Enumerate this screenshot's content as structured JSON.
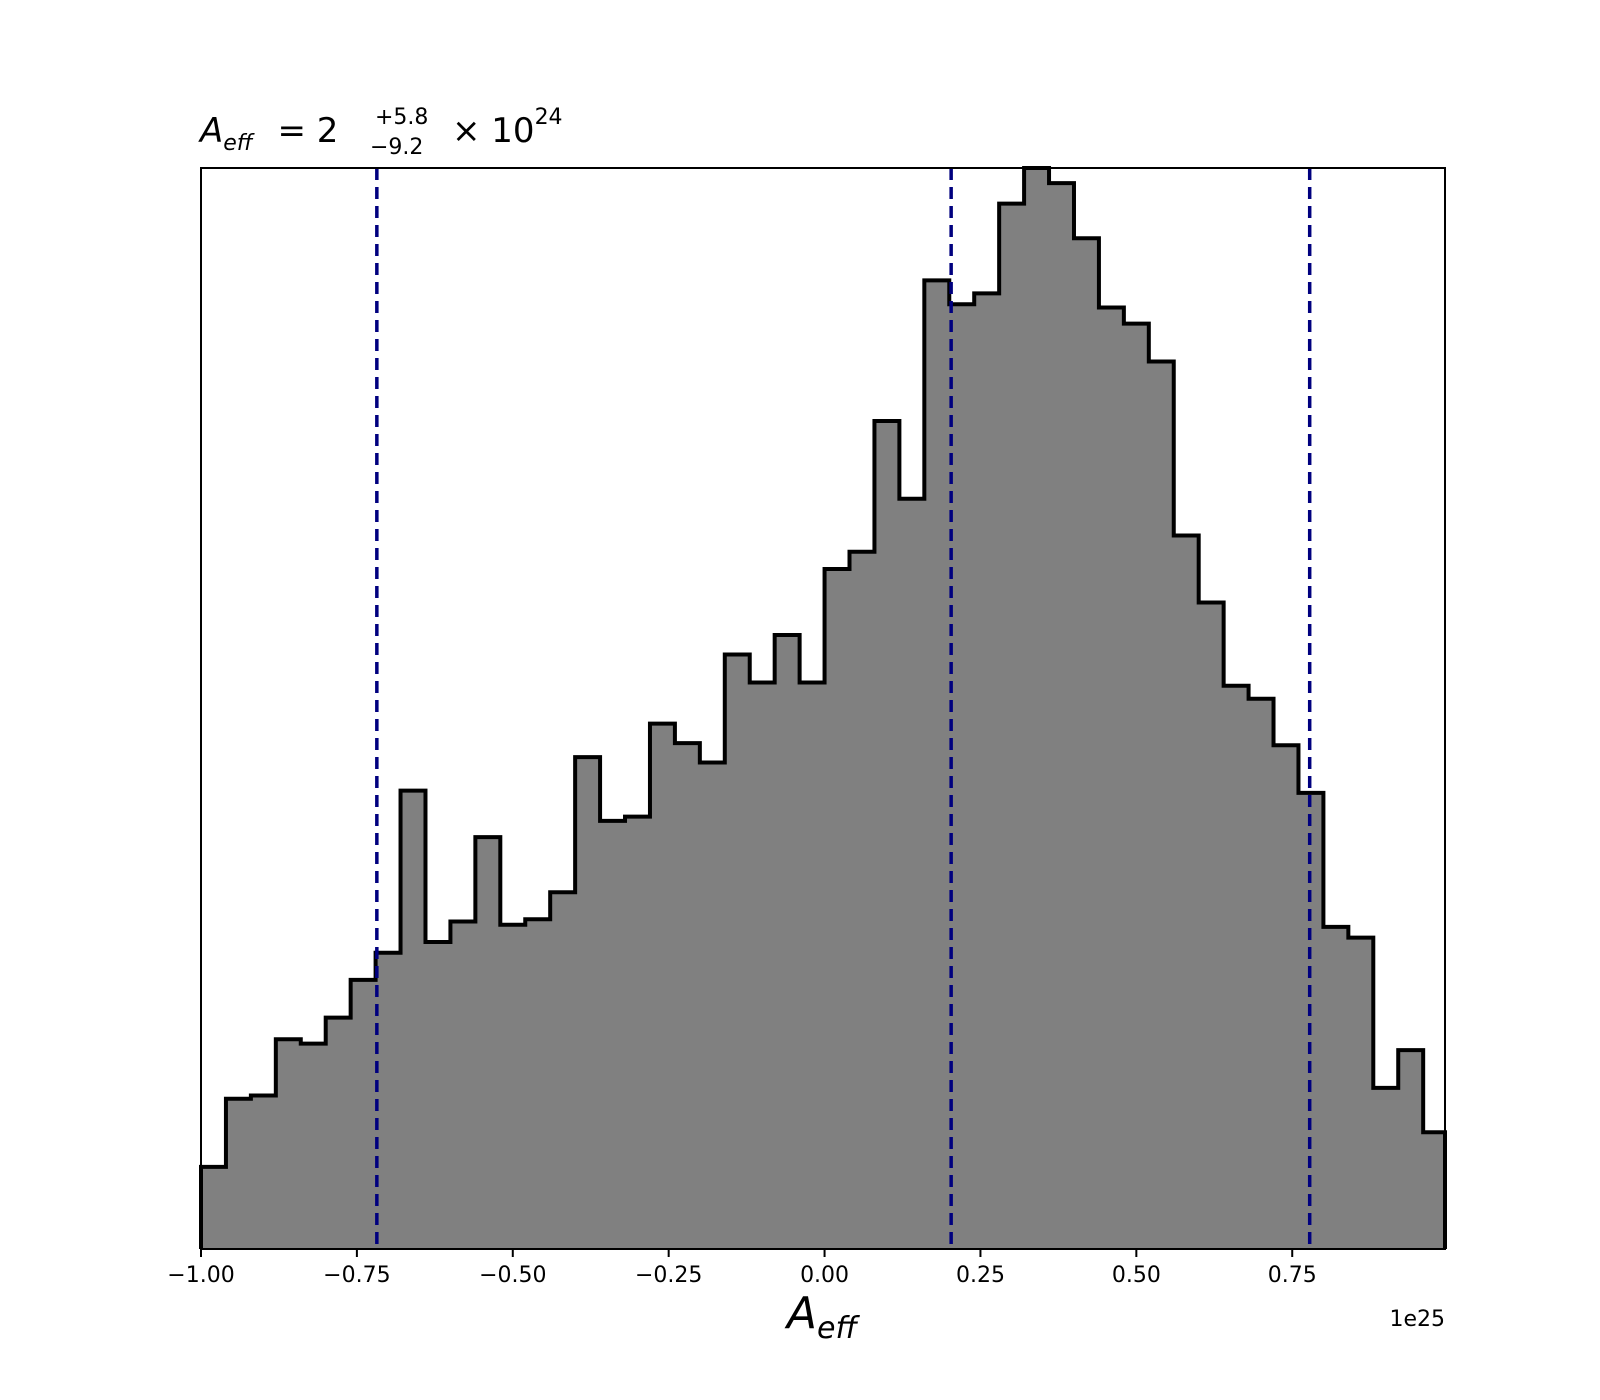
{
  "chart_data": {
    "type": "histogram",
    "title": {
      "symbol": "A",
      "symbol_sub": "eff",
      "equals": " = 2",
      "upper": "+5.8",
      "lower": "−9.2",
      "multiplier": "× 10",
      "exponent": "24"
    },
    "xlabel": {
      "symbol": "A",
      "sub": "eff"
    },
    "ylabel": "",
    "x_offset_label": "1e25",
    "x_scale": 1e+25,
    "xlim": [
      -1.0,
      0.995
    ],
    "ylim": [
      0,
      1.0
    ],
    "x_ticks": [
      -1.0,
      -0.75,
      -0.5,
      -0.25,
      0.0,
      0.25,
      0.5,
      0.75
    ],
    "x_tick_labels": [
      "−1.00",
      "−0.75",
      "−0.50",
      "−0.25",
      "0.00",
      "0.25",
      "0.50",
      "0.75"
    ],
    "y_ticks_shown": false,
    "bin_width": 0.04,
    "bin_left_edges": [
      -1.0,
      -0.96,
      -0.92,
      -0.88,
      -0.84,
      -0.8,
      -0.76,
      -0.72,
      -0.68,
      -0.64,
      -0.6,
      -0.56,
      -0.52,
      -0.48,
      -0.44,
      -0.4,
      -0.36,
      -0.32,
      -0.28,
      -0.24,
      -0.2,
      -0.16,
      -0.12,
      -0.08,
      -0.04,
      0.0,
      0.04,
      0.08,
      0.12,
      0.16,
      0.2,
      0.24,
      0.28,
      0.32,
      0.36,
      0.4,
      0.44,
      0.48,
      0.52,
      0.56,
      0.6,
      0.64,
      0.68,
      0.72,
      0.76,
      0.8,
      0.84,
      0.88,
      0.92,
      0.96
    ],
    "counts": [
      0.076,
      0.139,
      0.142,
      0.194,
      0.19,
      0.214,
      0.249,
      0.274,
      0.424,
      0.284,
      0.303,
      0.381,
      0.3,
      0.305,
      0.33,
      0.455,
      0.396,
      0.4,
      0.486,
      0.468,
      0.45,
      0.55,
      0.524,
      0.568,
      0.524,
      0.629,
      0.645,
      0.766,
      0.694,
      0.896,
      0.874,
      0.884,
      0.967,
      1.0,
      0.986,
      0.935,
      0.871,
      0.856,
      0.821,
      0.66,
      0.598,
      0.521,
      0.509,
      0.466,
      0.422,
      0.298,
      0.288,
      0.149,
      0.184,
      0.108
    ],
    "quantile_lines": [
      -0.718,
      0.203,
      0.778
    ],
    "colors": {
      "fill": "#808080",
      "edge": "#000000",
      "quantile": "#00007f",
      "frame": "#000000"
    }
  }
}
